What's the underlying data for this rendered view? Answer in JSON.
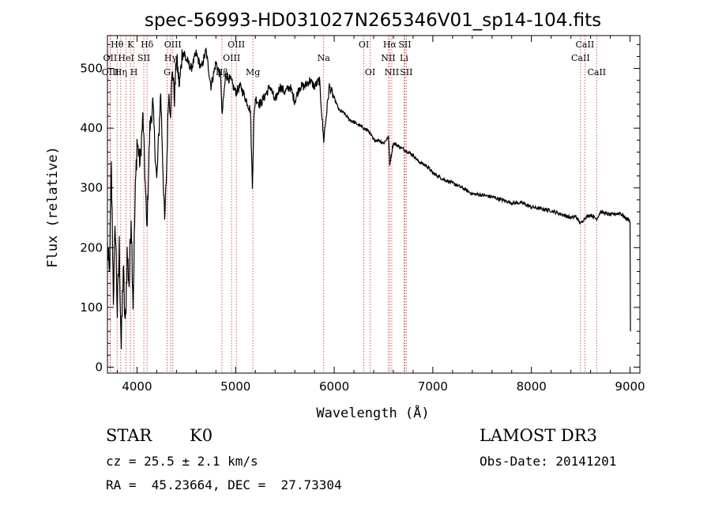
{
  "chart_data": {
    "type": "line",
    "title": "spec-56993-HD031027N265346V01_sp14-104.fits",
    "xlabel": "Wavelength (Å)",
    "ylabel": "Flux (relative)",
    "xlim": [
      3700,
      9100
    ],
    "ylim": [
      -10,
      555
    ],
    "xticks": [
      4000,
      5000,
      6000,
      7000,
      8000,
      9000
    ],
    "yticks": [
      0,
      100,
      200,
      300,
      400,
      500
    ],
    "grid": false,
    "series": [
      {
        "color": "#000000",
        "x": [
          3700,
          3720,
          3740,
          3760,
          3780,
          3800,
          3820,
          3840,
          3860,
          3880,
          3900,
          3920,
          3940,
          3960,
          3980,
          4000,
          4030,
          4060,
          4100,
          4130,
          4160,
          4200,
          4240,
          4280,
          4300,
          4320,
          4340,
          4360,
          4380,
          4400,
          4430,
          4460,
          4500,
          4550,
          4600,
          4650,
          4700,
          4750,
          4800,
          4850,
          4861,
          4900,
          4950,
          5000,
          5050,
          5100,
          5150,
          5170,
          5184,
          5200,
          5250,
          5300,
          5350,
          5400,
          5450,
          5500,
          5550,
          5600,
          5650,
          5700,
          5750,
          5800,
          5850,
          5893,
          5950,
          6000,
          6050,
          6100,
          6150,
          6200,
          6250,
          6300,
          6350,
          6400,
          6450,
          6500,
          6550,
          6563,
          6600,
          6650,
          6700,
          6750,
          6800,
          6850,
          6900,
          6950,
          7000,
          7050,
          7100,
          7200,
          7300,
          7400,
          7500,
          7600,
          7700,
          7800,
          7900,
          8000,
          8100,
          8200,
          8300,
          8400,
          8450,
          8500,
          8542,
          8600,
          8662,
          8700,
          8800,
          8900,
          8950,
          9000,
          9004
        ],
        "y": [
          200,
          150,
          330,
          120,
          240,
          90,
          200,
          30,
          170,
          60,
          190,
          140,
          260,
          110,
          270,
          380,
          340,
          420,
          230,
          400,
          440,
          310,
          460,
          240,
          330,
          460,
          430,
          500,
          450,
          520,
          470,
          530,
          515,
          500,
          525,
          500,
          530,
          470,
          510,
          485,
          420,
          490,
          480,
          460,
          470,
          450,
          430,
          300,
          410,
          450,
          440,
          455,
          470,
          445,
          470,
          460,
          470,
          445,
          470,
          470,
          480,
          470,
          480,
          380,
          470,
          450,
          430,
          425,
          415,
          410,
          405,
          400,
          395,
          380,
          380,
          375,
          385,
          340,
          375,
          370,
          365,
          360,
          355,
          345,
          340,
          335,
          325,
          320,
          315,
          308,
          300,
          290,
          288,
          285,
          280,
          275,
          275,
          268,
          265,
          262,
          256,
          250,
          252,
          240,
          250,
          255,
          248,
          260,
          255,
          258,
          250,
          245,
          60
        ]
      }
    ],
    "spectral_lines": [
      {
        "label": "Hθ",
        "x": 3798,
        "row": 0
      },
      {
        "label": "OII",
        "x": 3727,
        "row": 1
      },
      {
        "label": "OIII",
        "x": 3730,
        "row": 2
      },
      {
        "label": "K",
        "x": 3934,
        "row": 0
      },
      {
        "label": "HeI",
        "x": 3889,
        "row": 1
      },
      {
        "label": "Hη",
        "x": 3835,
        "row": 2
      },
      {
        "label": "SII",
        "x": 4069,
        "row": 1
      },
      {
        "label": "H",
        "x": 3969,
        "row": 2
      },
      {
        "label": "Hδ",
        "x": 4102,
        "row": 0
      },
      {
        "label": "OIII",
        "x": 4363,
        "row": 0
      },
      {
        "label": "Hγ",
        "x": 4341,
        "row": 1
      },
      {
        "label": "G",
        "x": 4305,
        "row": 2
      },
      {
        "label": "OIII",
        "x": 5007,
        "row": 0
      },
      {
        "label": "OIII",
        "x": 4959,
        "row": 1
      },
      {
        "label": "Hβ",
        "x": 4861,
        "row": 2
      },
      {
        "label": "Mg",
        "x": 5175,
        "row": 2
      },
      {
        "label": "Na",
        "x": 5893,
        "row": 1
      },
      {
        "label": "OI",
        "x": 6300,
        "row": 0
      },
      {
        "label": "OI",
        "x": 6364,
        "row": 2
      },
      {
        "label": "Hα",
        "x": 6563,
        "row": 0
      },
      {
        "label": "SII",
        "x": 6716,
        "row": 0
      },
      {
        "label": "NII",
        "x": 6548,
        "row": 1
      },
      {
        "label": "Li",
        "x": 6708,
        "row": 1
      },
      {
        "label": "NII",
        "x": 6584,
        "row": 2
      },
      {
        "label": "SII",
        "x": 6731,
        "row": 2
      },
      {
        "label": "CaII",
        "x": 8542,
        "row": 0
      },
      {
        "label": "CaII",
        "x": 8498,
        "row": 1
      },
      {
        "label": "CaII",
        "x": 8662,
        "row": 2
      }
    ]
  },
  "info": {
    "object_class": "STAR",
    "subclass": "K0",
    "survey": "LAMOST DR3",
    "redshift": "cz = 25.5 ± 2.1 km/s",
    "obs_date": "Obs-Date: 20141201",
    "coords": "RA =  45.23664, DEC =  27.73304"
  }
}
